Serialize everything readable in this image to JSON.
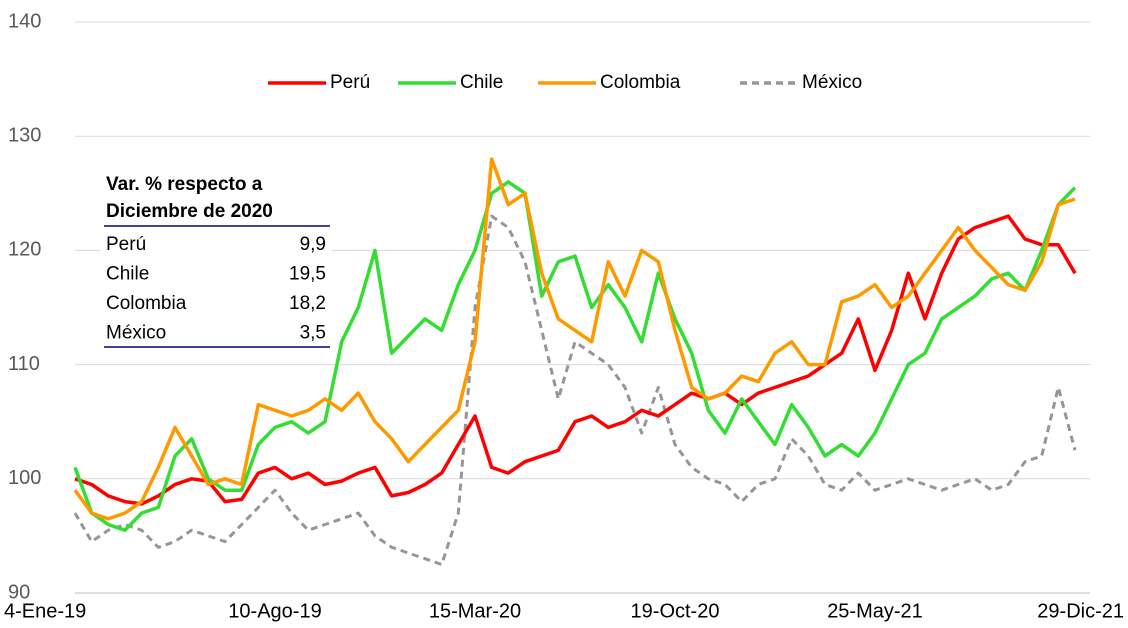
{
  "chart_data": {
    "type": "line",
    "categories": [
      "4-Ene-19",
      null,
      null,
      null,
      null,
      null,
      null,
      null,
      null,
      null,
      null,
      null,
      "10-Ago-19",
      null,
      null,
      null,
      null,
      null,
      null,
      null,
      null,
      null,
      null,
      null,
      "15-Mar-20",
      null,
      null,
      null,
      null,
      null,
      null,
      null,
      null,
      null,
      null,
      null,
      "19-Oct-20",
      null,
      null,
      null,
      null,
      null,
      null,
      null,
      null,
      null,
      null,
      null,
      "25-May-21",
      null,
      null,
      null,
      null,
      null,
      null,
      null,
      null,
      null,
      null,
      null,
      "29-Dic-21"
    ],
    "series": [
      {
        "name": "Perú",
        "color": "#ff0000",
        "dash": false,
        "values": [
          100,
          99.5,
          98.5,
          98,
          97.8,
          98.5,
          99.5,
          100,
          99.8,
          98,
          98.2,
          100.5,
          101,
          100,
          100.5,
          99.5,
          99.8,
          100.5,
          101,
          98.5,
          98.8,
          99.5,
          100.5,
          103,
          105.5,
          101,
          100.5,
          101.5,
          102,
          102.5,
          105,
          105.5,
          104.5,
          105,
          106,
          105.5,
          106.5,
          107.5,
          107,
          107.5,
          106.5,
          107.5,
          108,
          108.5,
          109,
          110,
          111,
          114,
          109.5,
          113,
          118,
          114,
          118,
          121,
          122,
          122.5,
          123,
          121,
          120.5,
          120.5,
          118
        ]
      },
      {
        "name": "Chile",
        "color": "#33dd33",
        "dash": false,
        "values": [
          101,
          97,
          96,
          95.5,
          97,
          97.5,
          102,
          103.5,
          100,
          99,
          99,
          103,
          104.5,
          105,
          104,
          105,
          112,
          115,
          120,
          111,
          112.5,
          114,
          113,
          117,
          120,
          125,
          126,
          125,
          116,
          119,
          119.5,
          115,
          117,
          115,
          112,
          118,
          114,
          111,
          106,
          104,
          107,
          105,
          103,
          106.5,
          104.5,
          102,
          103,
          102,
          104,
          107,
          110,
          111,
          114,
          115,
          116,
          117.5,
          118,
          116.5,
          120,
          124,
          125.5
        ]
      },
      {
        "name": "Colombia",
        "color": "#ff9900",
        "dash": false,
        "values": [
          99,
          97,
          96.5,
          97,
          98,
          101,
          104.5,
          102,
          99.5,
          100,
          99.5,
          106.5,
          106,
          105.5,
          106,
          107,
          106,
          107.5,
          105,
          103.5,
          101.5,
          103,
          104.5,
          106,
          112,
          128,
          124,
          125,
          118,
          114,
          113,
          112,
          119,
          116,
          120,
          119,
          113,
          108,
          107,
          107.5,
          109,
          108.5,
          111,
          112,
          110,
          110,
          115.5,
          116,
          117,
          115,
          116,
          118,
          120,
          122,
          120,
          118.5,
          117,
          116.5,
          119,
          124,
          124.5
        ]
      },
      {
        "name": "México",
        "color": "#969696",
        "dash": true,
        "values": [
          97,
          94.5,
          95.5,
          96,
          95.5,
          94,
          94.5,
          95.5,
          95,
          94.5,
          96,
          97.5,
          99,
          97,
          95.5,
          96,
          96.5,
          97,
          95,
          94,
          93.5,
          93,
          92.5,
          97,
          115,
          123,
          122,
          119,
          113,
          107,
          112,
          111,
          110,
          108,
          104,
          108,
          103,
          101,
          100,
          99.5,
          98,
          99.5,
          100,
          103.5,
          102,
          99.5,
          99,
          100.5,
          99,
          99.5,
          100,
          99.5,
          99,
          99.5,
          100,
          99,
          99.5,
          101.5,
          102,
          108,
          102.5
        ]
      }
    ],
    "ylim": [
      90,
      140
    ],
    "yticks": [
      90,
      100,
      110,
      120,
      130,
      140
    ],
    "grid": true,
    "legend": "top",
    "table": {
      "title": [
        "Var. % respecto a",
        "Diciembre de 2020"
      ],
      "rows": [
        [
          "Perú",
          "9,9"
        ],
        [
          "Chile",
          "19,5"
        ],
        [
          "Colombia",
          "18,2"
        ],
        [
          "México",
          "3,5"
        ]
      ]
    }
  }
}
